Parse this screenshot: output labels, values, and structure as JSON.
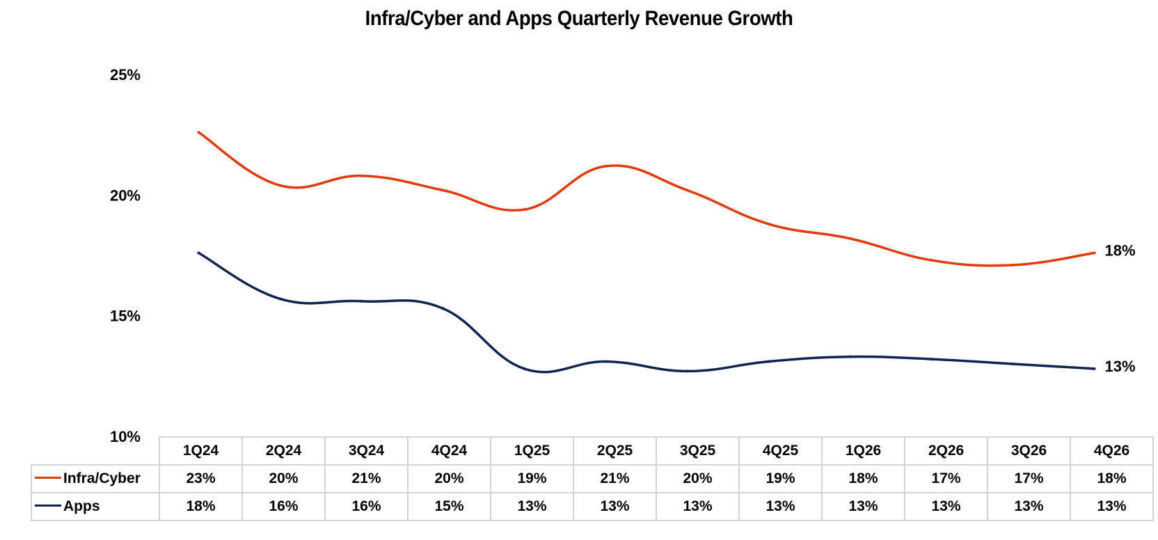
{
  "chart_data": {
    "type": "line",
    "title": "Infra/Cyber and Apps Quarterly Revenue Growth",
    "categories": [
      "1Q24",
      "2Q24",
      "3Q24",
      "4Q24",
      "1Q25",
      "2Q25",
      "3Q25",
      "4Q25",
      "1Q26",
      "2Q26",
      "3Q26",
      "4Q26"
    ],
    "ylim": [
      10,
      25
    ],
    "yticks": [
      10,
      15,
      20,
      25
    ],
    "ytick_labels": [
      "10%",
      "15%",
      "20%",
      "25%"
    ],
    "grid": false,
    "legend": "data table",
    "series": [
      {
        "name": "Infra/Cyber",
        "color": "#e03c0a",
        "values": [
          22.6,
          20.4,
          20.8,
          20.2,
          19.4,
          21.2,
          20.2,
          18.8,
          18.2,
          17.3,
          17.1,
          17.6
        ],
        "table_labels": [
          "23%",
          "20%",
          "21%",
          "20%",
          "19%",
          "21%",
          "20%",
          "19%",
          "18%",
          "17%",
          "17%",
          "18%"
        ],
        "end_label": "18%"
      },
      {
        "name": "Apps",
        "color": "#0f2550",
        "values": [
          17.6,
          15.7,
          15.6,
          15.3,
          12.8,
          13.1,
          12.7,
          13.1,
          13.3,
          13.2,
          13.0,
          12.8
        ],
        "table_labels": [
          "18%",
          "16%",
          "16%",
          "15%",
          "13%",
          "13%",
          "13%",
          "13%",
          "13%",
          "13%",
          "13%",
          "13%"
        ],
        "end_label": "13%"
      }
    ]
  }
}
